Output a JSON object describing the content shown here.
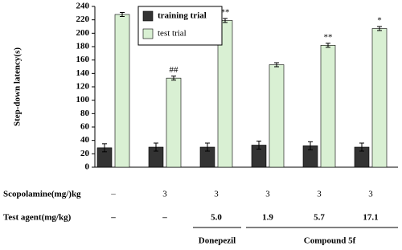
{
  "chart_data": {
    "type": "bar",
    "y_label": "Step-down latency(s)",
    "ylim": [
      0,
      240
    ],
    "yticks": [
      0,
      20,
      40,
      60,
      80,
      100,
      120,
      140,
      160,
      180,
      200,
      220,
      240
    ],
    "series": [
      {
        "name": "training trial",
        "color": "#333333",
        "values": [
          29,
          30,
          30,
          33,
          32,
          30
        ],
        "errors": [
          6,
          6,
          6,
          6,
          6,
          6
        ]
      },
      {
        "name": "test trial",
        "color": "#d9f0d3",
        "values": [
          228,
          133,
          219,
          153,
          182,
          207
        ],
        "errors": [
          3,
          3,
          3,
          3,
          3,
          3
        ]
      }
    ],
    "annotations": [
      null,
      "##",
      "**",
      null,
      "**",
      "*"
    ]
  },
  "table": {
    "rows": [
      {
        "label": "Scopolamine(mg/)kg",
        "cells": [
          "–",
          "3",
          "3",
          "3",
          "3",
          "3"
        ]
      },
      {
        "label": "Test agent(mg/kg)",
        "cells": [
          "–",
          "–",
          "5.0",
          "1.9",
          "5.7",
          "17.1"
        ]
      }
    ],
    "groups": [
      "Donepezil",
      "Compound 5f"
    ]
  }
}
